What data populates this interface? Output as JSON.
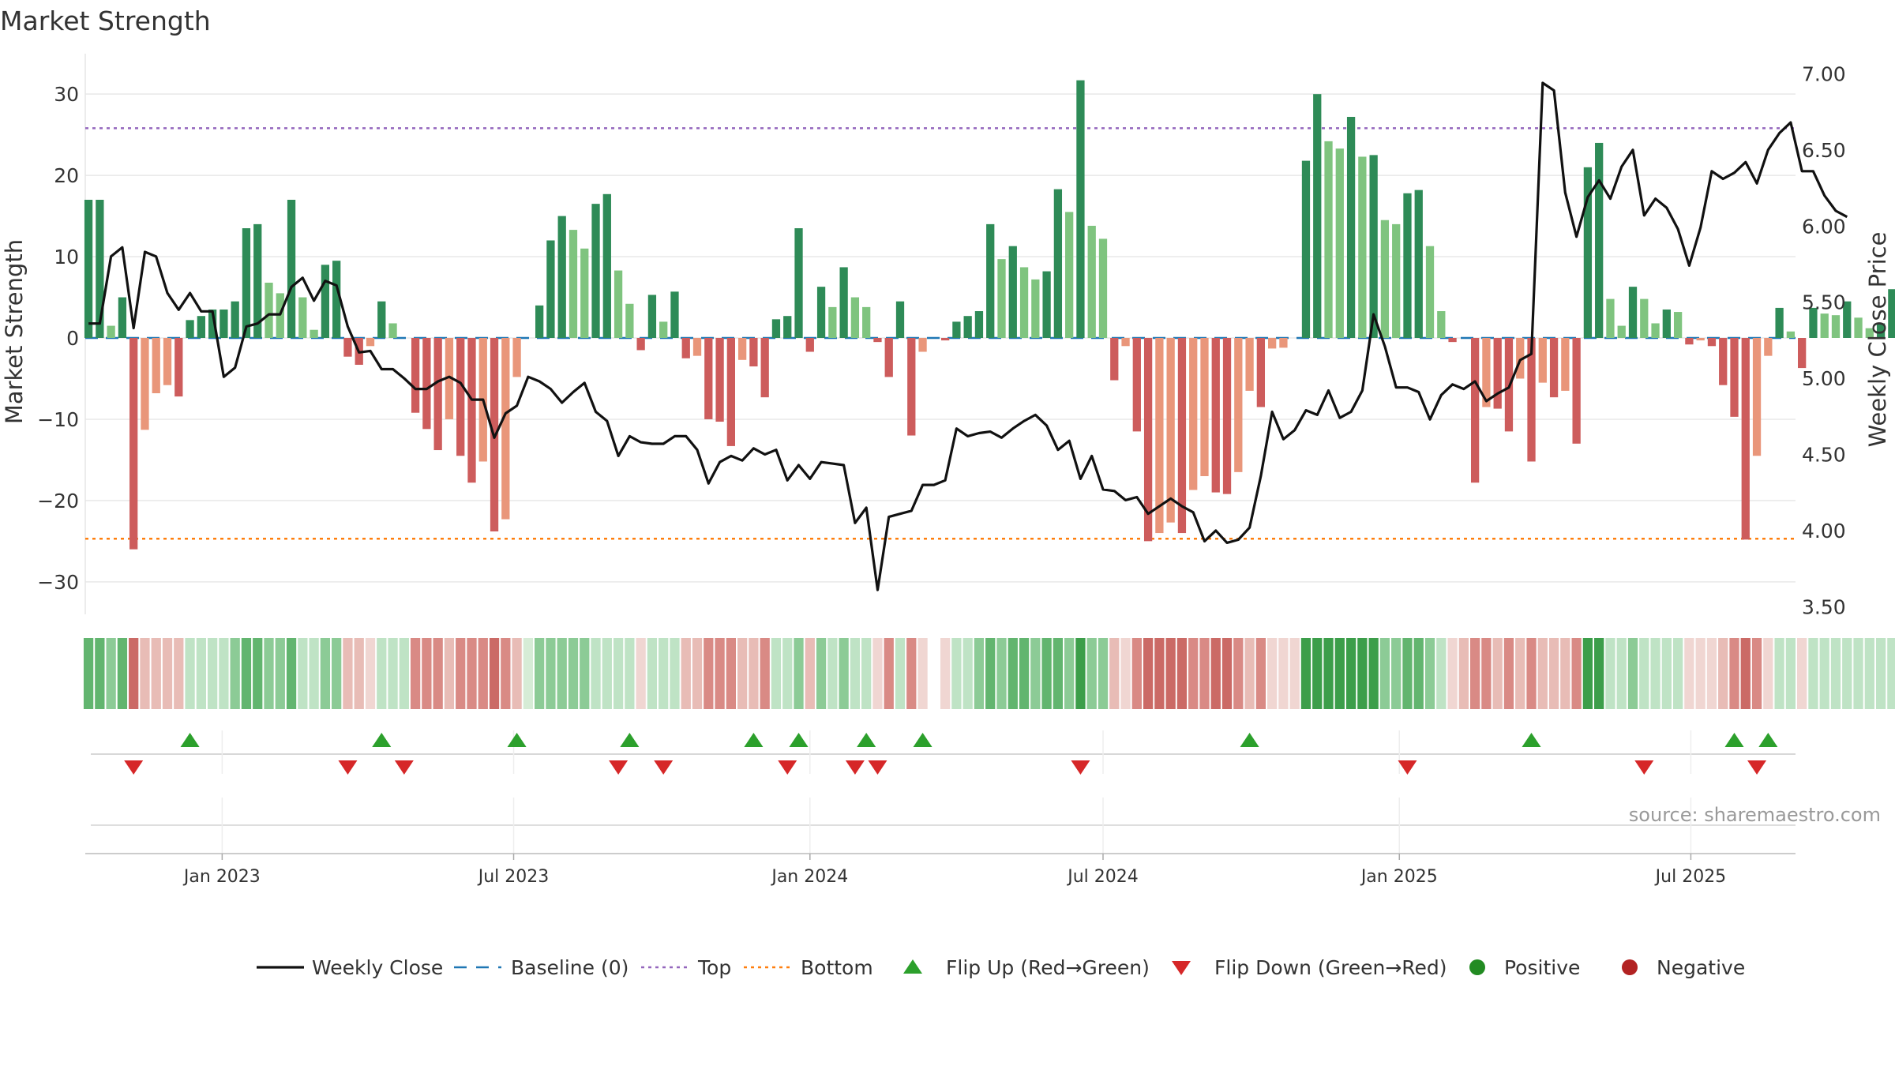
{
  "chart_data": {
    "type": "bar",
    "title": "Market Strength",
    "ylabel_left": "Market Strength",
    "ylabel_right": "Weekly Close Price",
    "xlabel": "",
    "source": "source: sharemaestro.com",
    "ylim_left": [
      -34,
      34
    ],
    "ylim_right": [
      3.45,
      7.08
    ],
    "yticks_left": [
      "30",
      "20",
      "10",
      "0",
      "−10",
      "−20",
      "−30"
    ],
    "yticks_right": [
      "7.00",
      "6.50",
      "6.00",
      "5.50",
      "5.00",
      "4.50",
      "4.00",
      "3.50"
    ],
    "yticks_left_values": [
      30,
      20,
      10,
      0,
      -10,
      -20,
      -30
    ],
    "yticks_right_values": [
      7.0,
      6.5,
      6.0,
      5.5,
      5.0,
      4.5,
      4.0,
      3.5
    ],
    "x_start": "2022-10-10",
    "x_step_days": 7,
    "x_axis_range_days": [
      -2,
      1060
    ],
    "xticks": [
      {
        "label": "Jan 2023",
        "date": "2023-01-01"
      },
      {
        "label": "Jul 2023",
        "date": "2023-07-01"
      },
      {
        "label": "Jan 2024",
        "date": "2024-01-01"
      },
      {
        "label": "Jul 2024",
        "date": "2024-07-01"
      },
      {
        "label": "Jan 2025",
        "date": "2025-01-01"
      },
      {
        "label": "Jul 2025",
        "date": "2025-07-01"
      }
    ],
    "top_line": 25.8,
    "bottom_line": -24.7,
    "strength": [
      17,
      17,
      1.5,
      5,
      -26,
      -11.3,
      -6.8,
      -5.8,
      -7.2,
      2.2,
      2.7,
      3.5,
      3.5,
      4.5,
      13.5,
      14,
      6.8,
      5.5,
      17,
      5,
      1,
      9,
      9.5,
      -2.3,
      -3.3,
      -1,
      4.5,
      1.8,
      0,
      -9.2,
      -11.2,
      -13.8,
      -10,
      -14.5,
      -17.8,
      -15.2,
      -23.8,
      -22.3,
      -4.8,
      0,
      4,
      12,
      15,
      13.3,
      11,
      16.5,
      17.7,
      8.3,
      4.2,
      -1.5,
      5.3,
      2,
      5.7,
      -2.5,
      -2.2,
      -10,
      -10.3,
      -13.3,
      -2.7,
      -3.5,
      -7.3,
      2.3,
      2.7,
      13.5,
      -1.7,
      6.3,
      3.8,
      8.7,
      5,
      3.8,
      -0.5,
      -4.8,
      4.5,
      -12,
      -1.7,
      0,
      -0.3,
      2,
      2.7,
      3.3,
      14,
      9.7,
      11.3,
      8.7,
      7.2,
      8.2,
      18.3,
      15.5,
      31.7,
      13.8,
      12.2,
      -5.2,
      -1,
      -11.5,
      -25,
      -24,
      -22.7,
      -24,
      -18.7,
      -17,
      -19,
      -19.2,
      -16.5,
      -6.5,
      -8.5,
      -1.3,
      -1.2,
      0,
      21.8,
      30,
      24.2,
      23.3,
      27.2,
      22.3,
      22.5,
      14.5,
      14,
      17.8,
      18.2,
      11.3,
      3.3,
      -0.5,
      0,
      -17.8,
      -8.5,
      -8.7,
      -11.5,
      -5,
      -15.2,
      -5.5,
      -7.3,
      -6.5,
      -13,
      21,
      24,
      4.8,
      1.5,
      6.3,
      4.8,
      1.8,
      3.5,
      3.2,
      -0.8,
      -0.3,
      -1,
      -5.8,
      -9.7,
      -24.8,
      -14.5,
      -2.2,
      3.7,
      0.8,
      -3.7,
      3.7,
      3,
      2.8,
      4.5,
      2.5,
      1.2,
      1.8,
      6
    ],
    "close": [
      5.36,
      5.36,
      5.8,
      5.86,
      5.33,
      5.83,
      5.8,
      5.56,
      5.45,
      5.56,
      5.44,
      5.44,
      5.01,
      5.07,
      5.34,
      5.36,
      5.42,
      5.42,
      5.6,
      5.66,
      5.51,
      5.64,
      5.61,
      5.34,
      5.17,
      5.18,
      5.06,
      5.06,
      5.0,
      4.93,
      4.93,
      4.98,
      5.01,
      4.97,
      4.86,
      4.86,
      4.61,
      4.77,
      4.82,
      5.01,
      4.98,
      4.93,
      4.84,
      4.91,
      4.97,
      4.78,
      4.72,
      4.49,
      4.62,
      4.58,
      4.57,
      4.57,
      4.62,
      4.62,
      4.53,
      4.31,
      4.45,
      4.49,
      4.46,
      4.54,
      4.5,
      4.53,
      4.33,
      4.43,
      4.34,
      4.45,
      4.44,
      4.43,
      4.05,
      4.15,
      3.61,
      4.09,
      4.11,
      4.13,
      4.3,
      4.3,
      4.33,
      4.67,
      4.62,
      4.64,
      4.65,
      4.61,
      4.67,
      4.72,
      4.76,
      4.69,
      4.53,
      4.59,
      4.34,
      4.49,
      4.27,
      4.26,
      4.2,
      4.22,
      4.11,
      4.16,
      4.21,
      4.16,
      4.12,
      3.93,
      4.0,
      3.92,
      3.94,
      4.02,
      4.36,
      4.78,
      4.6,
      4.66,
      4.79,
      4.76,
      4.92,
      4.74,
      4.78,
      4.92,
      5.42,
      5.21,
      4.94,
      4.94,
      4.91,
      4.73,
      4.89,
      4.96,
      4.93,
      4.98,
      4.85,
      4.9,
      4.94,
      5.12,
      5.16,
      6.94,
      6.89,
      6.22,
      5.93,
      6.19,
      6.3,
      6.18,
      6.39,
      6.5,
      6.07,
      6.18,
      6.12,
      5.98,
      5.74,
      5.99,
      6.36,
      6.31,
      6.35,
      6.42,
      6.28,
      6.5,
      6.61,
      6.68,
      6.36,
      6.36,
      6.2,
      6.1,
      6.06
    ],
    "state_boxes": [
      4,
      4,
      3,
      4,
      -4,
      -2,
      -2,
      -2,
      -2,
      2,
      2,
      2,
      2,
      3,
      4,
      4,
      3,
      3,
      4,
      2,
      2,
      3,
      3,
      -2,
      -2,
      -1,
      2,
      2,
      2,
      -3,
      -3,
      -3,
      -2,
      -3,
      -3,
      -3,
      -4,
      -3,
      -2,
      1,
      3,
      3,
      3,
      3,
      3,
      2,
      2,
      2,
      2,
      -1,
      2,
      2,
      2,
      -2,
      -2,
      -3,
      -3,
      -3,
      -2,
      -2,
      -3,
      2,
      2,
      3,
      -2,
      3,
      2,
      3,
      2,
      2,
      -1,
      -3,
      2,
      -3,
      -1,
      0,
      -1,
      2,
      2,
      3,
      4,
      3,
      4,
      4,
      3,
      4,
      4,
      3,
      5,
      3,
      3,
      -2,
      -1,
      -3,
      -4,
      -4,
      -4,
      -4,
      -3,
      -3,
      -4,
      -4,
      -3,
      -2,
      -3,
      -1,
      -1,
      -1,
      5,
      5,
      5,
      5,
      5,
      5,
      5,
      3,
      3,
      4,
      4,
      3,
      2,
      -1,
      -2,
      -3,
      -3,
      -2,
      -3,
      -2,
      -3,
      -2,
      -2,
      -2,
      -3,
      5,
      5,
      2,
      2,
      3,
      2,
      2,
      2,
      2,
      -1,
      -1,
      -1,
      -2,
      -3,
      -4,
      -3,
      -1,
      2,
      2,
      -1,
      2,
      2,
      2,
      2,
      2,
      2,
      2,
      2
    ],
    "flip_up_weeks": [
      9,
      26,
      38,
      48,
      59,
      63,
      69,
      74,
      103,
      128,
      146,
      149
    ],
    "flip_down_weeks": [
      4,
      23,
      28,
      47,
      51,
      62,
      68,
      70,
      88,
      117,
      138,
      148
    ],
    "legend": [
      {
        "label": "Weekly Close",
        "kind": "line"
      },
      {
        "label": "Baseline (0)",
        "kind": "dash"
      },
      {
        "label": "Top",
        "kind": "dot-purple"
      },
      {
        "label": "Bottom",
        "kind": "dot-orange"
      },
      {
        "label": "Flip Up (Red→Green)",
        "kind": "tri-up"
      },
      {
        "label": "Flip Down (Green→Red)",
        "kind": "tri-down"
      },
      {
        "label": "Positive",
        "kind": "dot-green"
      },
      {
        "label": "Negative",
        "kind": "dot-red"
      }
    ]
  },
  "colors": {
    "pos_strong": "#2e8b57",
    "pos_light": "#7fc47f",
    "neg_strong": "#cd5c5c",
    "neg_light": "#e9967a",
    "close_line": "#111111",
    "baseline": "#1f77b4",
    "top_line": "#9467bd",
    "bottom_line": "#ff7f0e",
    "flip_up": "#2ca02c",
    "flip_down": "#d62728",
    "positive_dot": "#228b22",
    "negative_dot": "#b22222",
    "grid": "#e8e8e8",
    "text": "#333333"
  }
}
